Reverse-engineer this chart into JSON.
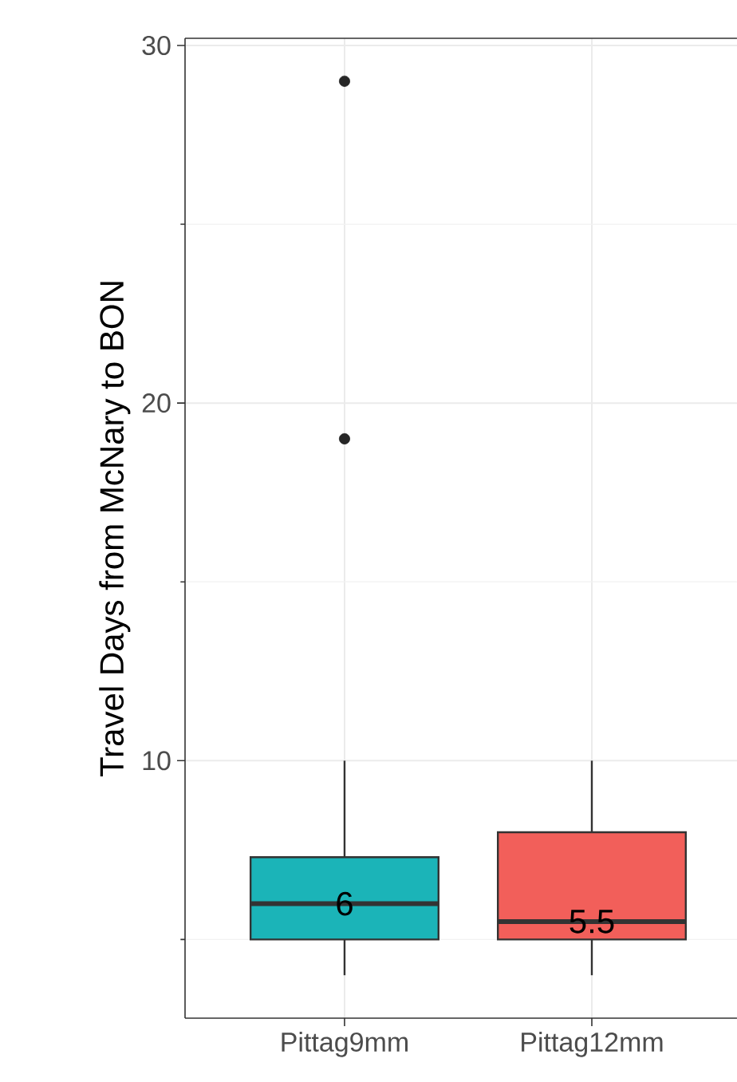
{
  "chart_data": {
    "type": "box",
    "ylabel": "Travel Days from McNary to BON",
    "categories": [
      "Pittag9mm",
      "Pittag12mm"
    ],
    "boxes": [
      {
        "low": 4,
        "q1": 5,
        "median": 6,
        "q3": 7.3,
        "high": 10,
        "outliers": [
          29,
          19
        ]
      },
      {
        "low": 4,
        "q1": 5,
        "median": 5.5,
        "q3": 8,
        "high": 10
      }
    ],
    "colors": [
      "#1bb4b8",
      "#f25f5a"
    ],
    "ylim": [
      2.8,
      30.2
    ],
    "yticks": [
      10,
      20,
      30
    ],
    "grid": true,
    "annotations": [
      "6",
      "5.5"
    ]
  }
}
